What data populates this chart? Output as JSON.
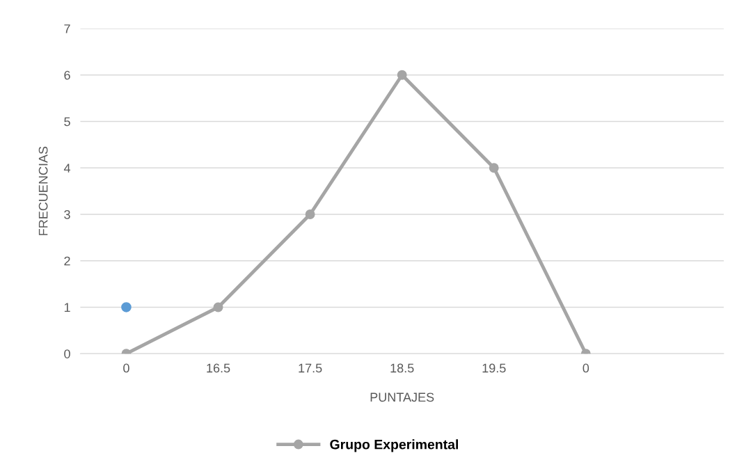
{
  "chart_data": {
    "type": "line",
    "xlabel": "PUNTAJES",
    "ylabel": "FRECUENCIAS",
    "categories": [
      "0",
      "16.5",
      "17.5",
      "18.5",
      "19.5",
      "0",
      null
    ],
    "series": [
      {
        "name": "Grupo Experimental",
        "color": "#a5a5a5",
        "values": [
          0,
          1,
          3,
          6,
          4,
          0,
          null
        ]
      },
      {
        "type": "scatter",
        "color": "#5b9bd5",
        "values": [
          1,
          null,
          null,
          null,
          null,
          null,
          null
        ]
      }
    ],
    "ylim": [
      0,
      7
    ],
    "yticks": [
      0,
      1,
      2,
      3,
      4,
      5,
      6,
      7
    ],
    "grid": "y",
    "legend": "bottom",
    "marker": "circle",
    "line_style": "solid"
  }
}
